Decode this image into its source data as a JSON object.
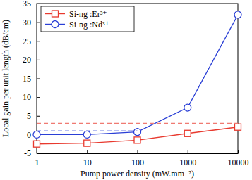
{
  "chart_data": {
    "type": "line",
    "x_label": "Pump power density (mW.mm⁻²)",
    "y_label": "Local gain per unit length (dB/cm)",
    "x": [
      1,
      10,
      100,
      1000,
      10000
    ],
    "series": [
      {
        "name": "Si-ng :Er³⁺",
        "color": "#e8392e",
        "marker": "square",
        "line_style": "solid",
        "values": [
          -2.5,
          -2.3,
          -1.5,
          0.3,
          2
        ]
      },
      {
        "name": "Si-ng :Nd³⁺",
        "color": "#2a3fd6",
        "marker": "circle",
        "line_style": "solid",
        "values": [
          0,
          0,
          0.7,
          7.2,
          32
        ]
      },
      {
        "color": "#f07a72",
        "marker": "none",
        "line_style": "dashed",
        "values": [
          3,
          3,
          3,
          3,
          3
        ]
      },
      {
        "color": "#6f7fe6",
        "marker": "none",
        "line_style": "dashed",
        "values": [
          1,
          1,
          1,
          null,
          null
        ]
      }
    ],
    "xlim": [
      1,
      10000
    ],
    "xticks": [
      1,
      10,
      100,
      1000,
      10000
    ],
    "ylim": [
      -5,
      35
    ],
    "yticks": [
      -5,
      0,
      5,
      10,
      15,
      20,
      25,
      30,
      35
    ],
    "log": "x",
    "grid": false,
    "legend": "upper left"
  }
}
